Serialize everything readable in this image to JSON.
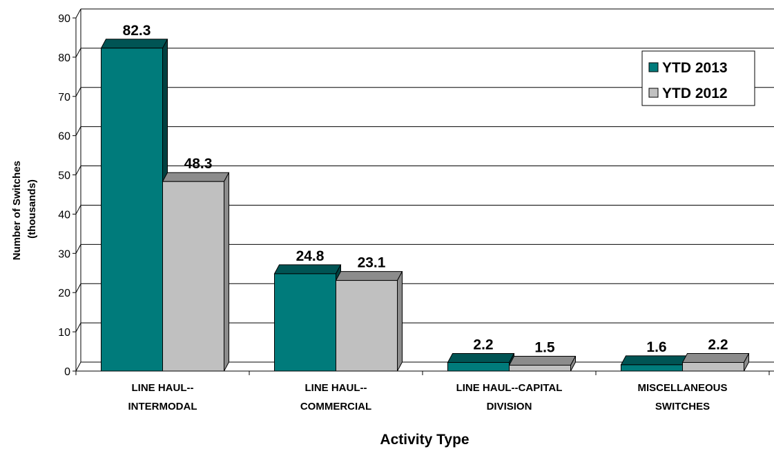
{
  "chart_data": {
    "type": "bar",
    "categories": [
      [
        "LINE HAUL--",
        "INTERMODAL"
      ],
      [
        "LINE HAUL--",
        "COMMERCIAL"
      ],
      [
        "LINE HAUL--CAPITAL",
        "DIVISION"
      ],
      [
        "MISCELLANEOUS",
        "SWITCHES"
      ]
    ],
    "series": [
      {
        "name": "YTD 2013",
        "values": [
          82.3,
          24.8,
          2.2,
          1.6
        ],
        "labels": [
          "82.3",
          "24.8",
          "2.2",
          "1.6"
        ],
        "color": "#007b7b",
        "top_color": "#005454",
        "side_color": "#004040"
      },
      {
        "name": "YTD 2012",
        "values": [
          48.3,
          23.1,
          1.5,
          2.2
        ],
        "labels": [
          "48.3",
          "23.1",
          "1.5",
          "2.2"
        ],
        "color": "#c0c0c0",
        "top_color": "#8c8c8c",
        "side_color": "#8c8c8c"
      }
    ],
    "xlabel": "Activity Type",
    "ylabel": [
      "Number of Switches",
      "(thousands)"
    ],
    "ylim": [
      0,
      90
    ],
    "yticks": [
      0,
      10,
      20,
      30,
      40,
      50,
      60,
      70,
      80,
      90
    ],
    "grid": true,
    "legend_position": "top-right",
    "style": "3d-clustered-column"
  }
}
